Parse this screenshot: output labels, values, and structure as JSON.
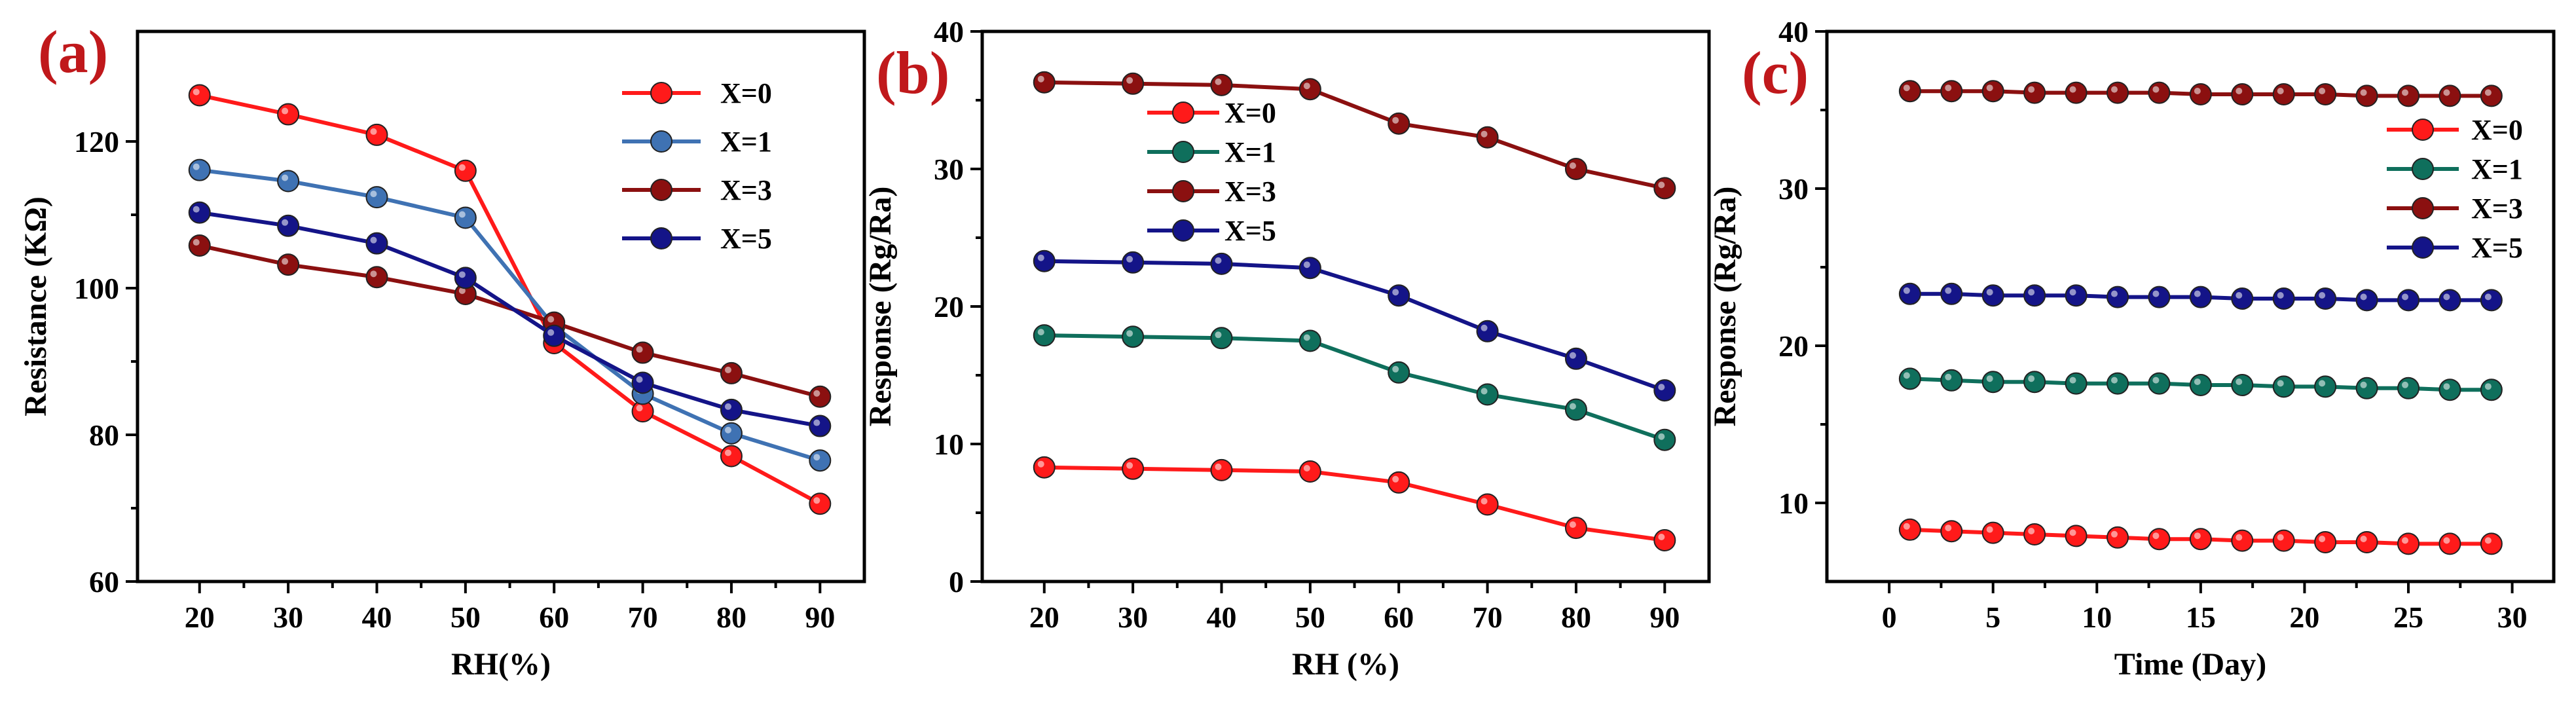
{
  "colors": {
    "X=0": "#ff1a1a",
    "X=1_a": "#3f72b3",
    "X=1": "#0f6f5c",
    "X=3": "#8b1010",
    "X=5": "#141488",
    "panel_label": "#c0181b"
  },
  "chart_data": [
    {
      "panel": "(a)",
      "type": "line",
      "xlabel": "RH(%)",
      "ylabel": "Resistance (KΩ)",
      "x": [
        20,
        30,
        40,
        50,
        60,
        70,
        80,
        90
      ],
      "xlim": [
        13,
        95
      ],
      "ylim": [
        60,
        135
      ],
      "xticks": [
        20,
        30,
        40,
        50,
        60,
        70,
        80,
        90
      ],
      "yticks": [
        60,
        80,
        100,
        120
      ],
      "legend_location": "top-right",
      "series": [
        {
          "name": "X=0",
          "color_key": "X=0",
          "values": [
            126.3,
            123.7,
            120.9,
            116.0,
            92.5,
            83.2,
            77.1,
            70.6
          ]
        },
        {
          "name": "X=1",
          "color_key": "X=1_a",
          "values": [
            116.1,
            114.6,
            112.4,
            109.6,
            94.8,
            85.6,
            80.2,
            76.5
          ]
        },
        {
          "name": "X=3",
          "color_key": "X=3",
          "values": [
            105.8,
            103.2,
            101.5,
            99.2,
            95.3,
            91.2,
            88.4,
            85.2
          ]
        },
        {
          "name": "X=5",
          "color_key": "X=5",
          "values": [
            110.3,
            108.5,
            106.1,
            101.4,
            93.5,
            87.1,
            83.4,
            81.2
          ]
        }
      ]
    },
    {
      "panel": "(b)",
      "type": "line",
      "xlabel": "RH (%)",
      "ylabel": "Response (Rg/Ra)",
      "x": [
        20,
        30,
        40,
        50,
        60,
        70,
        80,
        90
      ],
      "xlim": [
        13,
        95
      ],
      "ylim": [
        0,
        40
      ],
      "xticks": [
        20,
        30,
        40,
        50,
        60,
        70,
        80,
        90
      ],
      "yticks": [
        0,
        10,
        20,
        30,
        40
      ],
      "legend_location": "upper-center",
      "series": [
        {
          "name": "X=0",
          "color_key": "X=0",
          "values": [
            8.3,
            8.2,
            8.1,
            8.0,
            7.2,
            5.6,
            3.9,
            3.0
          ]
        },
        {
          "name": "X=1",
          "color_key": "X=1",
          "values": [
            17.9,
            17.8,
            17.7,
            17.5,
            15.2,
            13.6,
            12.5,
            10.3
          ]
        },
        {
          "name": "X=3",
          "color_key": "X=3",
          "values": [
            36.3,
            36.2,
            36.1,
            35.8,
            33.3,
            32.3,
            30.0,
            28.6
          ]
        },
        {
          "name": "X=5",
          "color_key": "X=5",
          "values": [
            23.3,
            23.2,
            23.1,
            22.8,
            20.8,
            18.2,
            16.2,
            13.9
          ]
        }
      ]
    },
    {
      "panel": "(c)",
      "type": "line",
      "xlabel": "Time (Day)",
      "ylabel": "Response (Rg/Ra)",
      "x": [
        1,
        3,
        5,
        7,
        9,
        11,
        13,
        15,
        17,
        19,
        21,
        23,
        25,
        27,
        29
      ],
      "xlim": [
        -3,
        32
      ],
      "ylim": [
        5,
        40
      ],
      "xticks": [
        0,
        5,
        10,
        15,
        20,
        25,
        30
      ],
      "yticks": [
        10,
        20,
        30,
        40
      ],
      "legend_location": "right",
      "series": [
        {
          "name": "X=0",
          "color_key": "X=0",
          "values": [
            8.3,
            8.2,
            8.1,
            8.0,
            7.9,
            7.8,
            7.7,
            7.7,
            7.6,
            7.6,
            7.5,
            7.5,
            7.4,
            7.4,
            7.4
          ]
        },
        {
          "name": "X=1",
          "color_key": "X=1",
          "values": [
            17.9,
            17.8,
            17.7,
            17.7,
            17.6,
            17.6,
            17.6,
            17.5,
            17.5,
            17.4,
            17.4,
            17.3,
            17.3,
            17.2,
            17.2
          ]
        },
        {
          "name": "X=3",
          "color_key": "X=3",
          "values": [
            36.2,
            36.2,
            36.2,
            36.1,
            36.1,
            36.1,
            36.1,
            36.0,
            36.0,
            36.0,
            36.0,
            35.9,
            35.9,
            35.9,
            35.9
          ]
        },
        {
          "name": "X=5",
          "color_key": "X=5",
          "values": [
            23.3,
            23.3,
            23.2,
            23.2,
            23.2,
            23.1,
            23.1,
            23.1,
            23.0,
            23.0,
            23.0,
            22.9,
            22.9,
            22.9,
            22.9
          ]
        }
      ]
    }
  ]
}
